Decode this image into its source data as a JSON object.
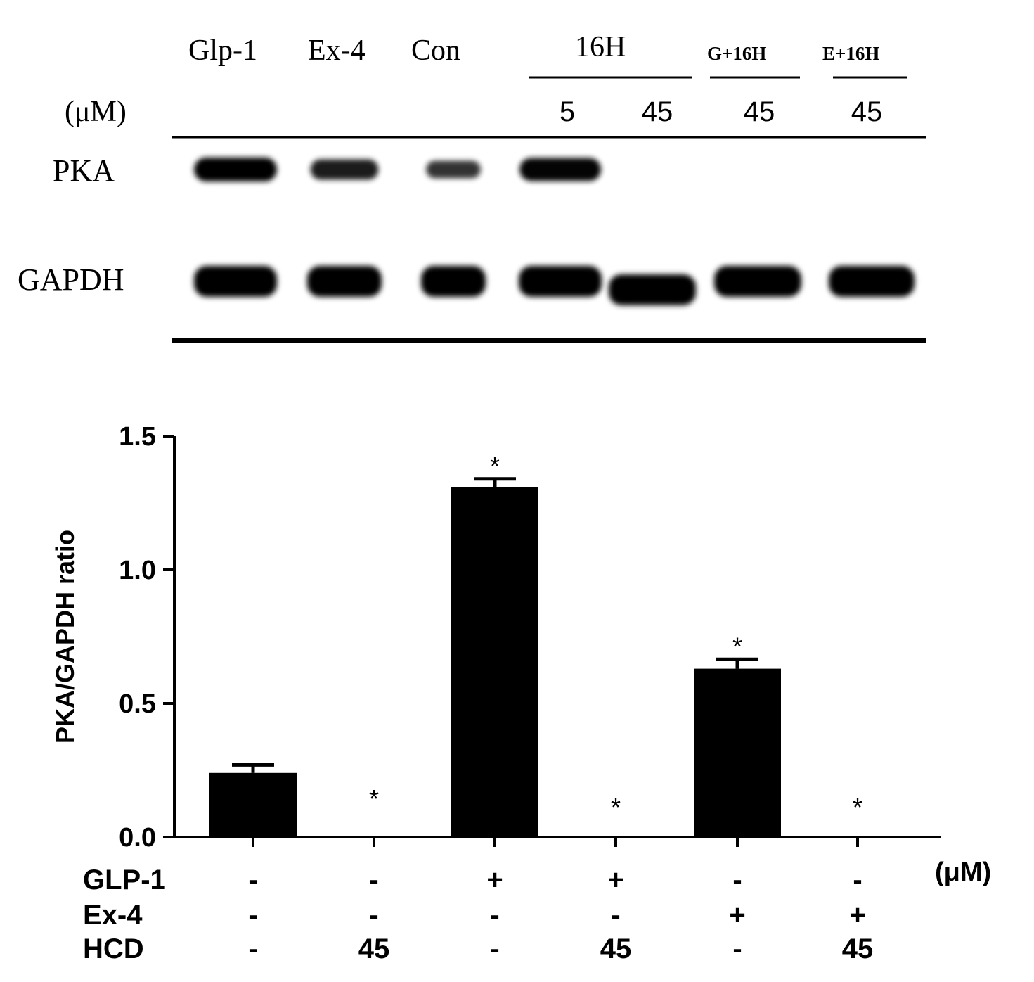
{
  "blot": {
    "lane_headers": [
      "Glp-1",
      "Ex-4",
      "Con"
    ],
    "group_headers": [
      "16H",
      "G+16H",
      "E+16H"
    ],
    "unit_label": "(μM)",
    "concentrations": [
      "5",
      "45",
      "45",
      "45"
    ],
    "row_labels": [
      "PKA",
      "GAPDH"
    ],
    "pka_intensity": [
      1.0,
      0.75,
      0.55,
      0.95,
      0.0,
      0.0,
      0.0
    ],
    "gapdh_intensity": [
      1.0,
      1.0,
      1.0,
      1.0,
      1.0,
      1.0,
      1.0
    ]
  },
  "chart_data": {
    "type": "bar",
    "ylabel": "PKA/GAPDH ratio",
    "ylim": [
      0,
      1.5
    ],
    "yticks": [
      "0.0",
      "0.5",
      "1.0",
      "1.5"
    ],
    "values": [
      0.24,
      0.0,
      1.31,
      0.0,
      0.63,
      0.0
    ],
    "errors": [
      0.03,
      0.0,
      0.03,
      0.0,
      0.035,
      0.0
    ],
    "significance": [
      "",
      "*",
      "*",
      "*",
      "*",
      "*"
    ],
    "treatment_rows": [
      {
        "name": "GLP-1",
        "values": [
          "-",
          "-",
          "+",
          "+",
          "-",
          "-"
        ]
      },
      {
        "name": "Ex-4",
        "values": [
          "-",
          "-",
          "-",
          "-",
          "+",
          "+"
        ]
      },
      {
        "name": "HCD",
        "values": [
          "-",
          "45",
          "-",
          "45",
          "-",
          "45"
        ]
      }
    ],
    "unit": "(μM)",
    "bar_color": "#000000"
  }
}
